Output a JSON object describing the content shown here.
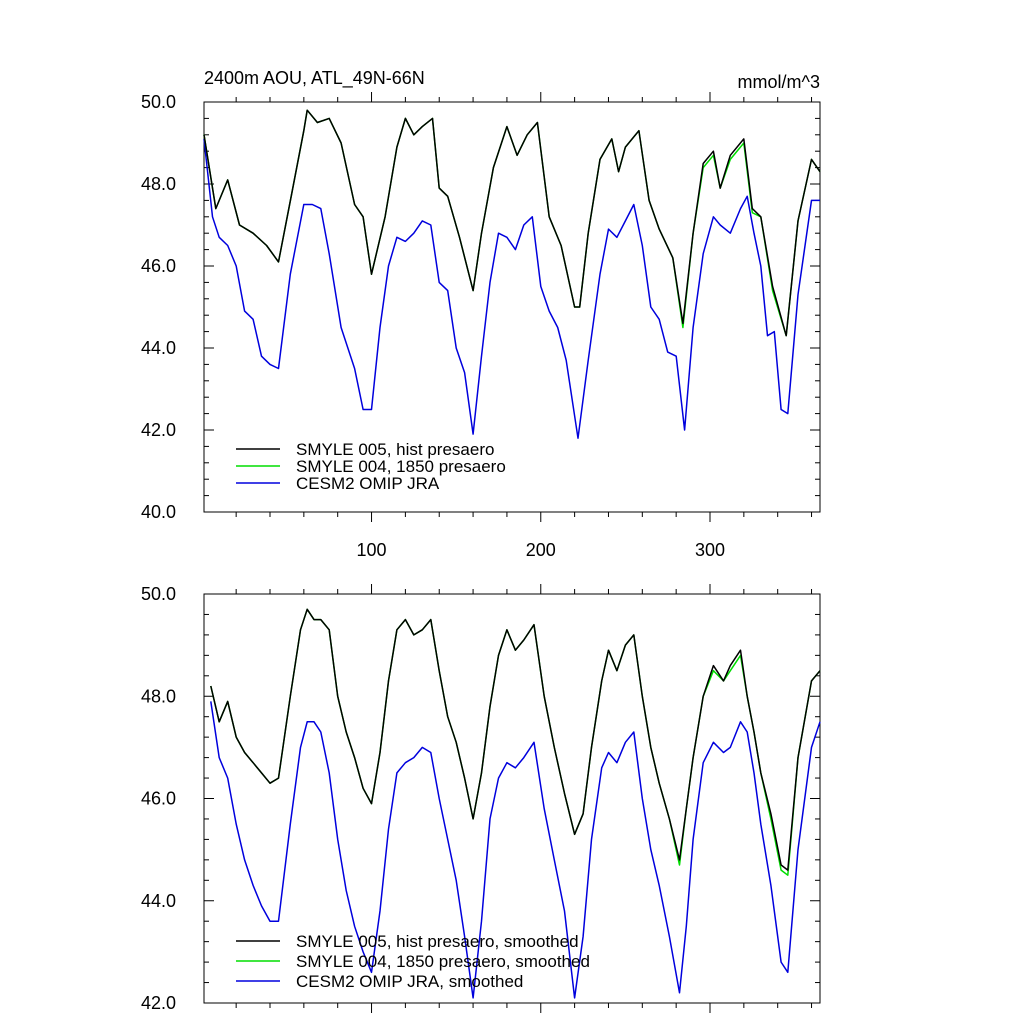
{
  "chart_data": [
    {
      "type": "line",
      "title": "2400m AOU, ATL_49N-66N",
      "units": "mmol/m^3",
      "xlim": [
        1,
        365
      ],
      "ylim": [
        40,
        50
      ],
      "xticks": [
        100,
        200,
        300
      ],
      "yticks": [
        "40.0",
        "42.0",
        "44.0",
        "46.0",
        "48.0",
        "50.0"
      ],
      "legend_position": "bottom-left",
      "series": [
        {
          "name": "SMYLE 005, hist presaero",
          "color": "#000000",
          "x": [
            1,
            8,
            15,
            22,
            30,
            38,
            45,
            53,
            60,
            62,
            68,
            75,
            82,
            90,
            95,
            100,
            108,
            115,
            120,
            125,
            130,
            136,
            140,
            145,
            152,
            160,
            165,
            172,
            180,
            186,
            192,
            198,
            205,
            212,
            220,
            223,
            228,
            235,
            242,
            246,
            250,
            258,
            264,
            270,
            278,
            284,
            290,
            296,
            302,
            306,
            312,
            320,
            325,
            330,
            337,
            345,
            352,
            360,
            365
          ],
          "y": [
            49.2,
            47.4,
            48.1,
            47.0,
            46.8,
            46.5,
            46.1,
            47.8,
            49.3,
            49.8,
            49.5,
            49.6,
            49.0,
            47.5,
            47.2,
            45.8,
            47.2,
            48.9,
            49.6,
            49.2,
            49.4,
            49.6,
            47.9,
            47.7,
            46.7,
            45.4,
            46.8,
            48.4,
            49.4,
            48.7,
            49.2,
            49.5,
            47.2,
            46.5,
            45.0,
            45.0,
            46.8,
            48.6,
            49.1,
            48.3,
            48.9,
            49.3,
            47.6,
            46.9,
            46.2,
            44.6,
            46.8,
            48.5,
            48.8,
            47.9,
            48.7,
            49.1,
            47.4,
            47.2,
            45.5,
            44.3,
            47.1,
            48.6,
            48.3
          ]
        },
        {
          "name": "SMYLE 004, 1850 presaero",
          "color": "#00dd00",
          "x": [
            1,
            8,
            15,
            22,
            30,
            38,
            45,
            53,
            60,
            62,
            68,
            75,
            82,
            90,
            95,
            100,
            108,
            115,
            120,
            125,
            130,
            136,
            140,
            145,
            152,
            160,
            165,
            172,
            180,
            186,
            192,
            198,
            205,
            212,
            220,
            223,
            228,
            235,
            242,
            246,
            250,
            258,
            264,
            270,
            278,
            284,
            290,
            296,
            302,
            306,
            312,
            320,
            325,
            330,
            337,
            345,
            352,
            360,
            365
          ],
          "y": [
            49.2,
            47.4,
            48.1,
            47.0,
            46.8,
            46.5,
            46.1,
            47.8,
            49.3,
            49.8,
            49.5,
            49.6,
            49.0,
            47.5,
            47.2,
            45.8,
            47.2,
            48.9,
            49.6,
            49.2,
            49.4,
            49.6,
            47.9,
            47.7,
            46.7,
            45.4,
            46.8,
            48.4,
            49.4,
            48.7,
            49.2,
            49.5,
            47.2,
            46.5,
            45.0,
            45.0,
            46.8,
            48.6,
            49.1,
            48.3,
            48.9,
            49.3,
            47.6,
            46.9,
            46.2,
            44.5,
            46.8,
            48.4,
            48.7,
            47.9,
            48.6,
            49.0,
            47.3,
            47.2,
            45.4,
            44.3,
            47.1,
            48.6,
            48.3
          ]
        },
        {
          "name": "CESM2 OMIP JRA",
          "color": "#0000dd",
          "x": [
            1,
            6,
            10,
            15,
            20,
            25,
            30,
            35,
            40,
            45,
            52,
            60,
            65,
            70,
            75,
            82,
            90,
            95,
            100,
            105,
            110,
            115,
            120,
            125,
            130,
            135,
            140,
            145,
            150,
            155,
            160,
            165,
            170,
            175,
            180,
            185,
            190,
            195,
            200,
            205,
            210,
            215,
            222,
            228,
            235,
            240,
            245,
            250,
            255,
            260,
            265,
            270,
            275,
            280,
            285,
            290,
            296,
            302,
            306,
            312,
            318,
            322,
            326,
            330,
            334,
            338,
            342,
            346,
            352,
            360,
            365
          ],
          "y": [
            49.1,
            47.2,
            46.7,
            46.5,
            46.0,
            44.9,
            44.7,
            43.8,
            43.6,
            43.5,
            45.8,
            47.5,
            47.5,
            47.4,
            46.3,
            44.5,
            43.5,
            42.5,
            42.5,
            44.5,
            46.0,
            46.7,
            46.6,
            46.8,
            47.1,
            47.0,
            45.6,
            45.4,
            44.0,
            43.4,
            41.9,
            43.8,
            45.6,
            46.8,
            46.7,
            46.4,
            47.0,
            47.2,
            45.5,
            44.9,
            44.5,
            43.7,
            41.8,
            43.7,
            45.8,
            46.9,
            46.7,
            47.1,
            47.5,
            46.5,
            45.0,
            44.7,
            43.9,
            43.8,
            42.0,
            44.5,
            46.3,
            47.2,
            47.0,
            46.8,
            47.4,
            47.7,
            46.8,
            46.0,
            44.3,
            44.4,
            42.5,
            42.4,
            45.3,
            47.6,
            47.6
          ]
        }
      ]
    },
    {
      "type": "line",
      "xlim": [
        1,
        365
      ],
      "ylim": [
        42,
        50
      ],
      "xticks": [
        100,
        200,
        300
      ],
      "yticks": [
        "42.0",
        "44.0",
        "46.0",
        "48.0",
        "50.0"
      ],
      "legend_position": "bottom-left",
      "series": [
        {
          "name": "SMYLE 005, hist presaero, smoothed",
          "color": "#000000",
          "x": [
            5,
            10,
            15,
            20,
            25,
            30,
            35,
            40,
            45,
            52,
            58,
            62,
            66,
            70,
            75,
            80,
            85,
            90,
            95,
            100,
            105,
            110,
            115,
            120,
            125,
            130,
            135,
            140,
            145,
            150,
            155,
            160,
            165,
            170,
            175,
            180,
            185,
            190,
            196,
            202,
            208,
            214,
            220,
            225,
            230,
            236,
            240,
            245,
            250,
            255,
            260,
            265,
            270,
            276,
            282,
            286,
            290,
            296,
            302,
            308,
            312,
            318,
            322,
            326,
            330,
            336,
            342,
            346,
            352,
            360,
            365
          ],
          "y": [
            48.2,
            47.5,
            47.9,
            47.2,
            46.9,
            46.7,
            46.5,
            46.3,
            46.4,
            48.0,
            49.3,
            49.7,
            49.5,
            49.5,
            49.3,
            48.0,
            47.3,
            46.8,
            46.2,
            45.9,
            46.9,
            48.3,
            49.3,
            49.5,
            49.2,
            49.3,
            49.5,
            48.5,
            47.6,
            47.1,
            46.4,
            45.6,
            46.5,
            47.8,
            48.8,
            49.3,
            48.9,
            49.1,
            49.4,
            48.0,
            47.0,
            46.1,
            45.3,
            45.7,
            47.0,
            48.3,
            48.9,
            48.5,
            49.0,
            49.2,
            48.0,
            47.0,
            46.3,
            45.6,
            44.8,
            45.8,
            46.8,
            48.0,
            48.6,
            48.3,
            48.6,
            48.9,
            48.0,
            47.3,
            46.5,
            45.7,
            44.7,
            44.6,
            46.8,
            48.3,
            48.5
          ]
        },
        {
          "name": "SMYLE 004, 1850 presaero, smoothed",
          "color": "#00dd00",
          "x": [
            5,
            10,
            15,
            20,
            25,
            30,
            35,
            40,
            45,
            52,
            58,
            62,
            66,
            70,
            75,
            80,
            85,
            90,
            95,
            100,
            105,
            110,
            115,
            120,
            125,
            130,
            135,
            140,
            145,
            150,
            155,
            160,
            165,
            170,
            175,
            180,
            185,
            190,
            196,
            202,
            208,
            214,
            220,
            225,
            230,
            236,
            240,
            245,
            250,
            255,
            260,
            265,
            270,
            276,
            282,
            286,
            290,
            296,
            302,
            308,
            312,
            318,
            322,
            326,
            330,
            336,
            342,
            346,
            352,
            360,
            365
          ],
          "y": [
            48.2,
            47.5,
            47.9,
            47.2,
            46.9,
            46.7,
            46.5,
            46.3,
            46.4,
            48.0,
            49.3,
            49.7,
            49.5,
            49.5,
            49.3,
            48.0,
            47.3,
            46.8,
            46.2,
            45.9,
            46.9,
            48.3,
            49.3,
            49.5,
            49.2,
            49.3,
            49.5,
            48.5,
            47.6,
            47.1,
            46.4,
            45.6,
            46.5,
            47.8,
            48.8,
            49.3,
            48.9,
            49.1,
            49.4,
            48.0,
            47.0,
            46.1,
            45.3,
            45.7,
            47.0,
            48.3,
            48.9,
            48.5,
            49.0,
            49.2,
            48.0,
            47.0,
            46.3,
            45.6,
            44.7,
            45.8,
            46.8,
            48.0,
            48.5,
            48.3,
            48.5,
            48.8,
            48.0,
            47.3,
            46.5,
            45.6,
            44.6,
            44.5,
            46.8,
            48.3,
            48.5
          ]
        },
        {
          "name": "CESM2 OMIP JRA, smoothed",
          "color": "#0000dd",
          "x": [
            5,
            10,
            15,
            20,
            25,
            30,
            35,
            40,
            45,
            52,
            58,
            62,
            66,
            70,
            75,
            80,
            85,
            90,
            95,
            100,
            105,
            110,
            115,
            120,
            125,
            130,
            135,
            140,
            145,
            150,
            155,
            160,
            165,
            170,
            175,
            180,
            185,
            190,
            196,
            202,
            208,
            214,
            220,
            225,
            230,
            236,
            240,
            245,
            250,
            255,
            260,
            265,
            270,
            276,
            282,
            286,
            290,
            296,
            302,
            308,
            312,
            318,
            322,
            326,
            330,
            336,
            342,
            346,
            352,
            360,
            365
          ],
          "y": [
            47.9,
            46.8,
            46.4,
            45.5,
            44.8,
            44.3,
            43.9,
            43.6,
            43.6,
            45.5,
            47.0,
            47.5,
            47.5,
            47.3,
            46.5,
            45.2,
            44.2,
            43.5,
            43.0,
            42.6,
            43.8,
            45.4,
            46.5,
            46.7,
            46.8,
            47.0,
            46.9,
            46.0,
            45.2,
            44.4,
            43.3,
            42.1,
            43.6,
            45.6,
            46.4,
            46.7,
            46.6,
            46.8,
            47.1,
            45.8,
            44.8,
            43.8,
            42.1,
            43.3,
            45.2,
            46.6,
            46.9,
            46.7,
            47.1,
            47.3,
            46.0,
            45.0,
            44.3,
            43.3,
            42.2,
            43.5,
            45.2,
            46.7,
            47.1,
            46.9,
            47.0,
            47.5,
            47.3,
            46.5,
            45.5,
            44.3,
            42.8,
            42.6,
            45.0,
            47.0,
            47.5
          ]
        }
      ]
    }
  ]
}
